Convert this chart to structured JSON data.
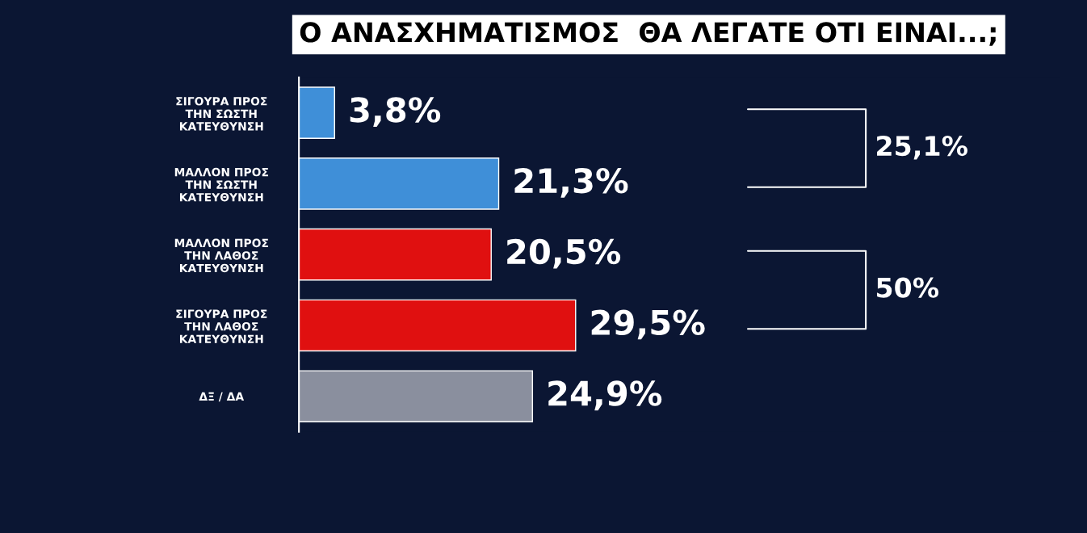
{
  "chart_data": {
    "type": "bar",
    "orientation": "horizontal",
    "title": "Ο ΑΝΑΣΧΗΜΑΤΙΣΜΟΣ  ΘΑ ΛΕΓΑΤΕ ΟΤΙ ΕΙΝΑΙ...;",
    "categories": [
      "ΣΙΓΟΥΡΑ ΠΡΟΣ\nΤΗΝ ΣΩΣΤΗ\nΚΑΤΕΥΘΥΝΣΗ",
      "ΜΑΛΛΟΝ ΠΡΟΣ\nΤΗΝ ΣΩΣΤΗ\nΚΑΤΕΥΘΥΝΣΗ",
      "ΜΑΛΛΟΝ ΠΡΟΣ\nΤΗΝ ΛΑΘΟΣ\nΚΑΤΕΥΘΥΝΣΗ",
      "ΣΙΓΟΥΡΑ ΠΡΟΣ\nΤΗΝ ΛΑΘΟΣ\nΚΑΤΕΥΘΥΝΣΗ",
      "ΔΞ / ΔΑ"
    ],
    "values": [
      3.8,
      21.3,
      20.5,
      29.5,
      24.9
    ],
    "colors": [
      "#3f8fd8",
      "#3f8fd8",
      "#e01010",
      "#e01010",
      "#8a8f9e"
    ],
    "value_labels": [
      "3,8%",
      "21,3%",
      "20,5%",
      "29,5%",
      "24,9%"
    ],
    "annotations": [
      "25,1%",
      "50%"
    ],
    "grid": false,
    "legend": false
  }
}
